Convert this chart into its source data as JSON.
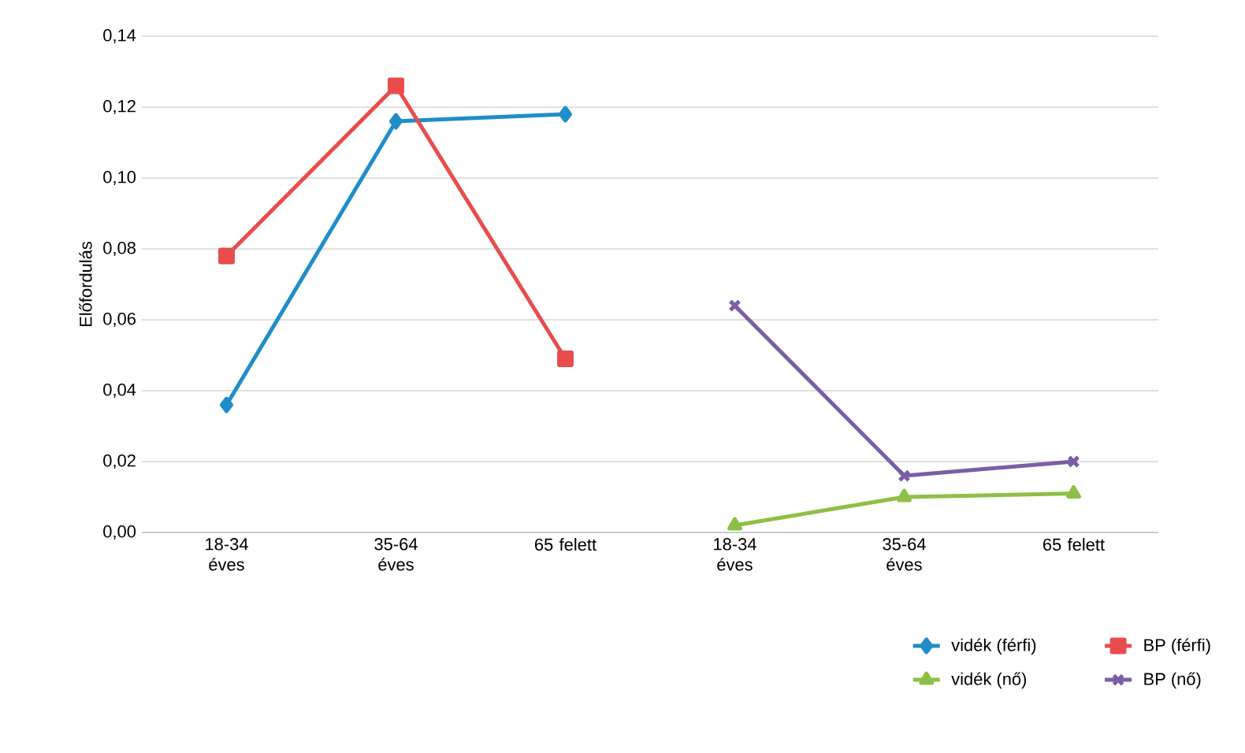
{
  "chart_data": {
    "type": "line",
    "ylabel": "Előfordulás",
    "categories": [
      "18-34 éves",
      "35-64 éves",
      "65 felett",
      "18-34 éves",
      "35-64 éves",
      "65 felett"
    ],
    "series": [
      {
        "name": "vidék (férfi)",
        "color": "#1f8dc9",
        "marker": "diamond",
        "values": [
          0.036,
          0.116,
          0.118,
          null,
          null,
          null
        ]
      },
      {
        "name": "BP (férfi)",
        "color": "#e84c4c",
        "marker": "square",
        "values": [
          0.078,
          0.126,
          0.049,
          null,
          null,
          null
        ]
      },
      {
        "name": "vidék (nő)",
        "color": "#8dbf45",
        "marker": "triangle",
        "values": [
          null,
          null,
          null,
          0.002,
          0.01,
          0.011
        ]
      },
      {
        "name": "BP (nő)",
        "color": "#7b5ea7",
        "marker": "cross",
        "values": [
          null,
          null,
          null,
          0.064,
          0.016,
          0.02
        ]
      }
    ],
    "ylim": [
      0,
      0.14
    ],
    "yticks": [
      {
        "value": 0,
        "label": "0,00"
      },
      {
        "value": 0.02,
        "label": "0,02"
      },
      {
        "value": 0.04,
        "label": "0,04"
      },
      {
        "value": 0.06,
        "label": "0,06"
      },
      {
        "value": 0.08,
        "label": "0,08"
      },
      {
        "value": 0.1,
        "label": "0,10"
      },
      {
        "value": 0.12,
        "label": "0,12"
      },
      {
        "value": 0.14,
        "label": "0,14"
      }
    ],
    "grid": "y",
    "legend": "bottom right",
    "line_style": "solid"
  }
}
